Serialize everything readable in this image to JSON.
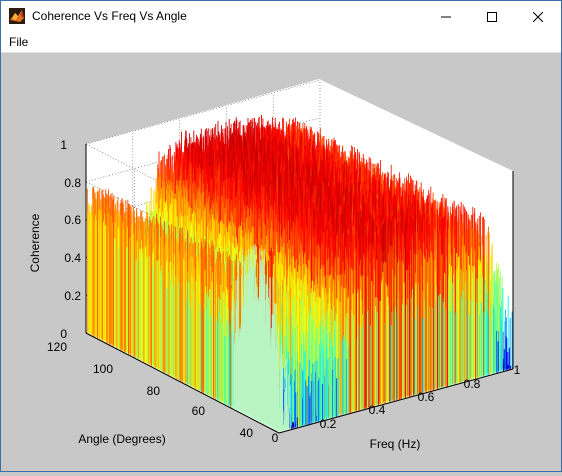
{
  "window": {
    "title": "Coherence Vs Freq Vs Angle",
    "icon": "matlab-logo-icon"
  },
  "window_controls": {
    "minimize": "minimize-icon",
    "maximize": "maximize-icon",
    "close": "close-icon"
  },
  "menu": {
    "file": "File"
  },
  "chart_data": {
    "type": "surface-3d",
    "zlabel": "Coherence",
    "ylabel": "Angle (Degrees)",
    "xlabel": "Freq (Hz)",
    "z_ticks": [
      "0",
      "0.2",
      "0.4",
      "0.6",
      "0.8",
      "1"
    ],
    "y_ticks": [
      "40",
      "60",
      "80",
      "100",
      "120"
    ],
    "x_ticks": [
      "0",
      "0.2",
      "0.4",
      "0.6",
      "0.8",
      "1"
    ],
    "zlim": [
      0,
      1
    ],
    "ylim": [
      40,
      120
    ],
    "xlim": [
      0,
      1
    ],
    "grid": true,
    "colormap": "jet"
  }
}
